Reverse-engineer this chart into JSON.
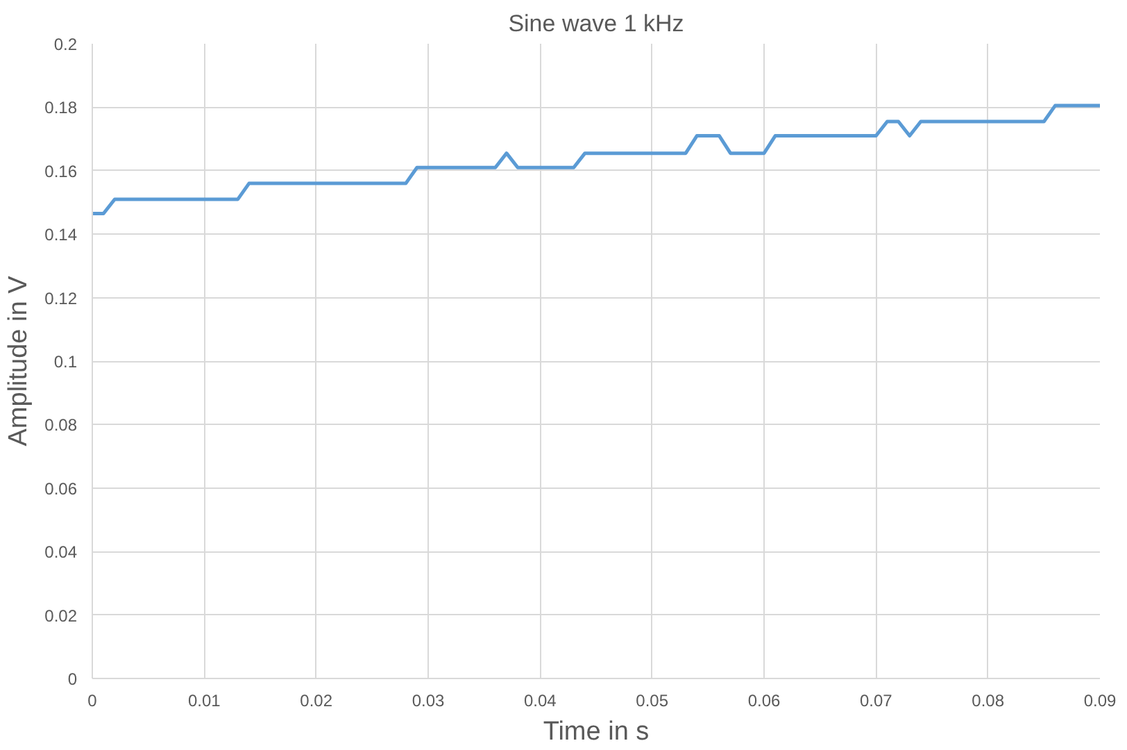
{
  "chart_data": {
    "type": "line",
    "title": "Sine wave 1 kHz",
    "xlabel": "Time in s",
    "ylabel": "Amplitude in V",
    "x": [
      0,
      0.001,
      0.002,
      0.013,
      0.014,
      0.028,
      0.029,
      0.036,
      0.037,
      0.038,
      0.043,
      0.044,
      0.053,
      0.054,
      0.056,
      0.057,
      0.06,
      0.061,
      0.07,
      0.071,
      0.072,
      0.073,
      0.074,
      0.085,
      0.086,
      0.09
    ],
    "series": [
      {
        "color": "#5b9bd5",
        "values": [
          0.1465,
          0.1465,
          0.151,
          0.151,
          0.156,
          0.156,
          0.161,
          0.161,
          0.1655,
          0.161,
          0.161,
          0.1655,
          0.1655,
          0.171,
          0.171,
          0.1655,
          0.1655,
          0.171,
          0.171,
          0.1755,
          0.1755,
          0.171,
          0.1755,
          0.1755,
          0.1805,
          0.1805
        ]
      }
    ],
    "xlim": [
      0,
      0.09
    ],
    "xticks": [
      0,
      0.01,
      0.02,
      0.03,
      0.04,
      0.05,
      0.06,
      0.07,
      0.08,
      0.09
    ],
    "ylim": [
      0,
      0.2
    ],
    "yticks": [
      0,
      0.02,
      0.04,
      0.06,
      0.08,
      0.1,
      0.12,
      0.14,
      0.16,
      0.18,
      0.2
    ],
    "grid": true,
    "marker": "none",
    "line_style": "solid"
  }
}
